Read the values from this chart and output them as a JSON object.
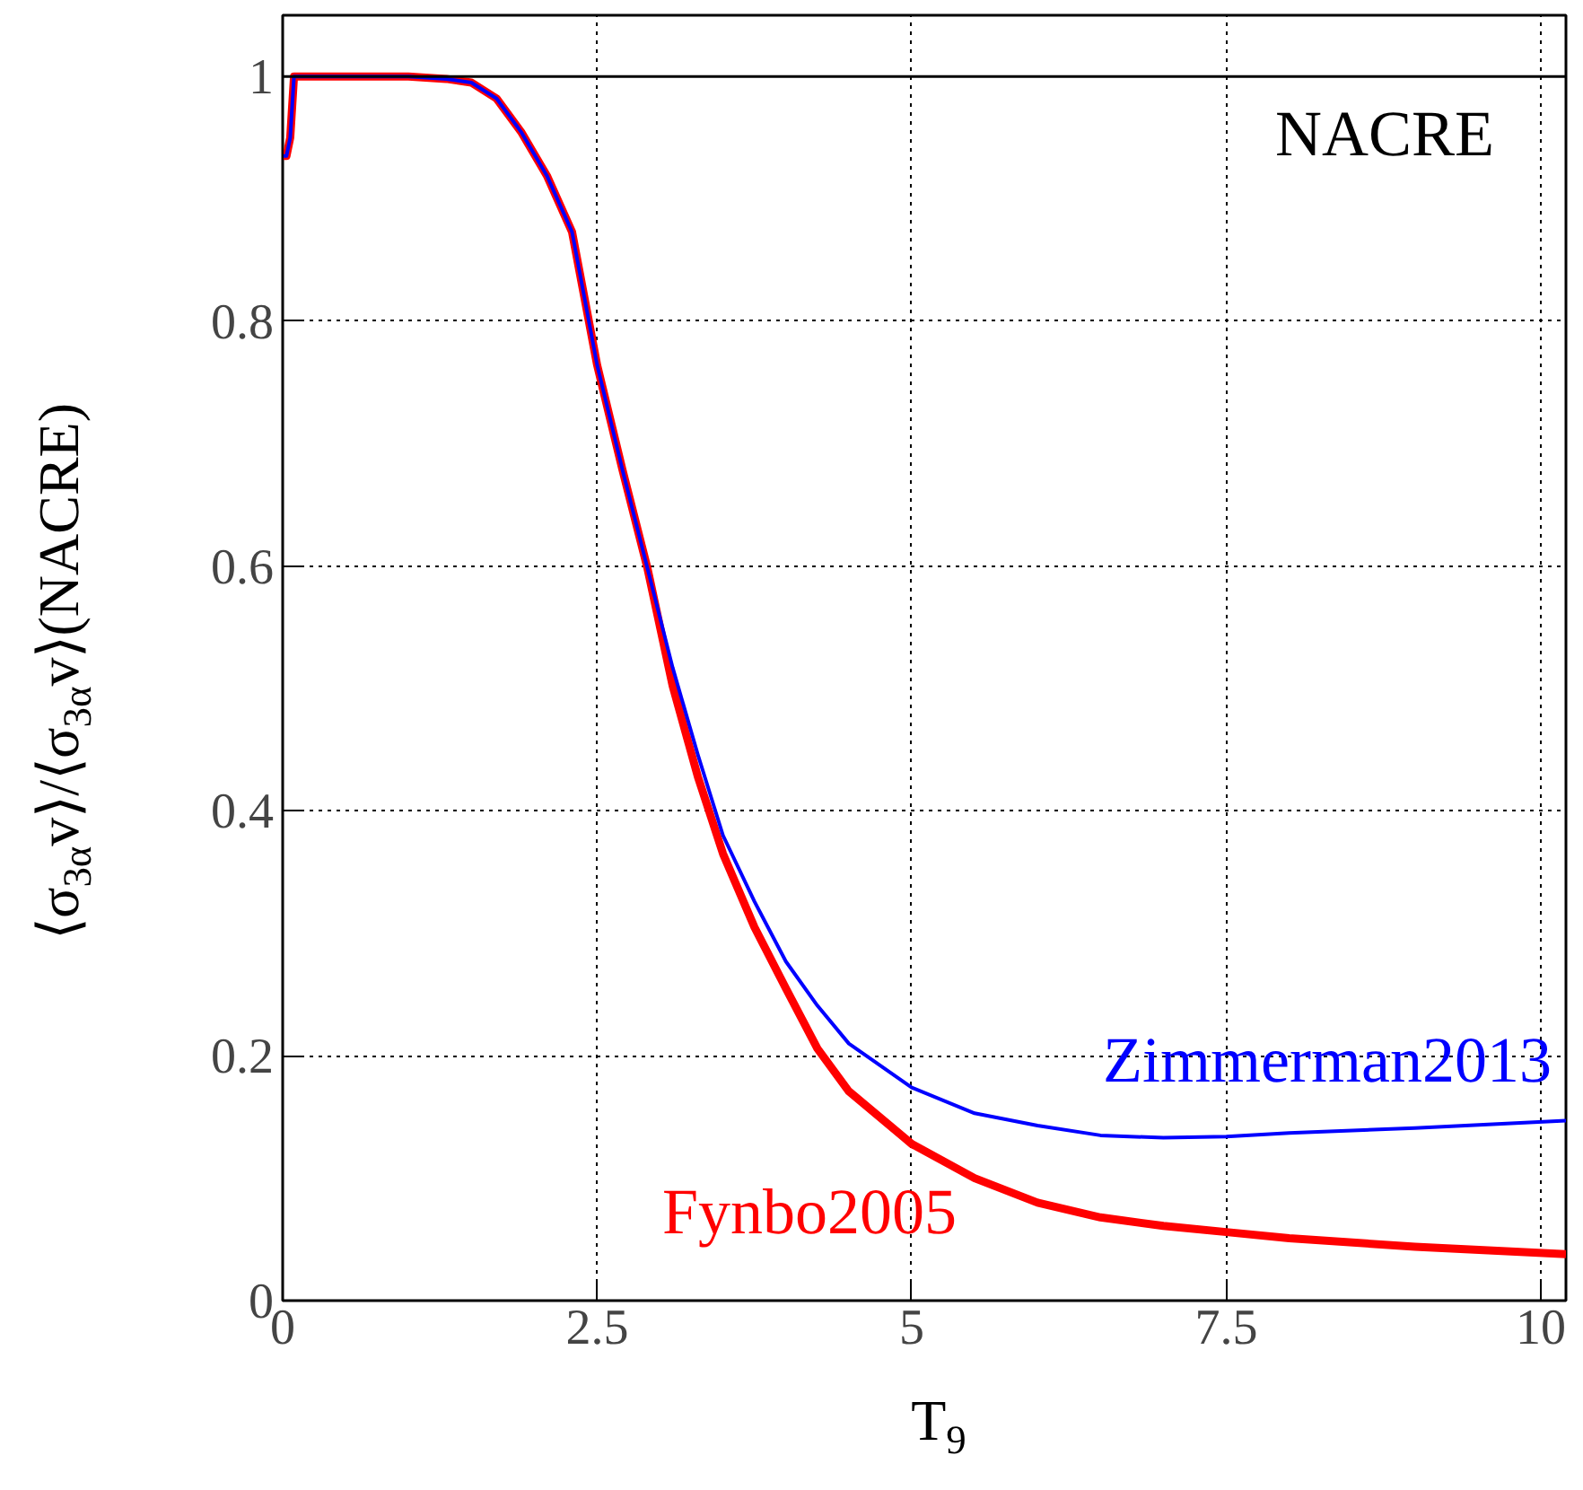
{
  "chart_data": {
    "type": "line",
    "xlabel": "T$_{9}$",
    "ylabel": "⟨σ$_{3α}$v⟩/⟨σ$_{3α}$v⟩(NACRE)",
    "x": [
      0,
      0.03,
      0.06,
      0.09,
      1.0,
      1.3,
      1.5,
      1.7,
      1.9,
      2.1,
      2.3,
      2.5,
      2.7,
      2.9,
      3.1,
      3.3,
      3.5,
      3.75,
      4.0,
      4.25,
      4.5,
      5.0,
      5.5,
      6.0,
      6.5,
      7.0,
      7.5,
      8.0,
      9.0,
      10.2
    ],
    "series": [
      {
        "name": "Zimmerman2013",
        "color": "#0000ff",
        "values": [
          0.935,
          0.935,
          0.95,
          1.0,
          1.0,
          0.998,
          0.995,
          0.982,
          0.954,
          0.919,
          0.873,
          0.764,
          0.679,
          0.598,
          0.517,
          0.446,
          0.38,
          0.326,
          0.277,
          0.241,
          0.21,
          0.174,
          0.153,
          0.143,
          0.135,
          0.133,
          0.134,
          0.137,
          0.141,
          0.147
        ]
      },
      {
        "name": "Fynbo2005",
        "color": "#ff0000",
        "values": [
          0.935,
          0.935,
          0.95,
          1.0,
          1.0,
          0.998,
          0.995,
          0.982,
          0.954,
          0.919,
          0.873,
          0.764,
          0.679,
          0.598,
          0.502,
          0.428,
          0.365,
          0.305,
          0.255,
          0.206,
          0.171,
          0.128,
          0.1,
          0.08,
          0.068,
          0.061,
          0.056,
          0.051,
          0.044,
          0.038
        ]
      }
    ],
    "ref_lines": [
      {
        "axis": "y",
        "value": 1,
        "label": "NACRE",
        "color": "#000000"
      }
    ],
    "xlim": [
      0,
      10.2
    ],
    "ylim": [
      0,
      1.05
    ],
    "xticks": [
      0,
      2.5,
      5,
      7.5,
      10
    ],
    "yticks": [
      0,
      0.2,
      0.4,
      0.6,
      0.8,
      1
    ],
    "grid": true,
    "line_style": "solid",
    "marker": "none"
  }
}
